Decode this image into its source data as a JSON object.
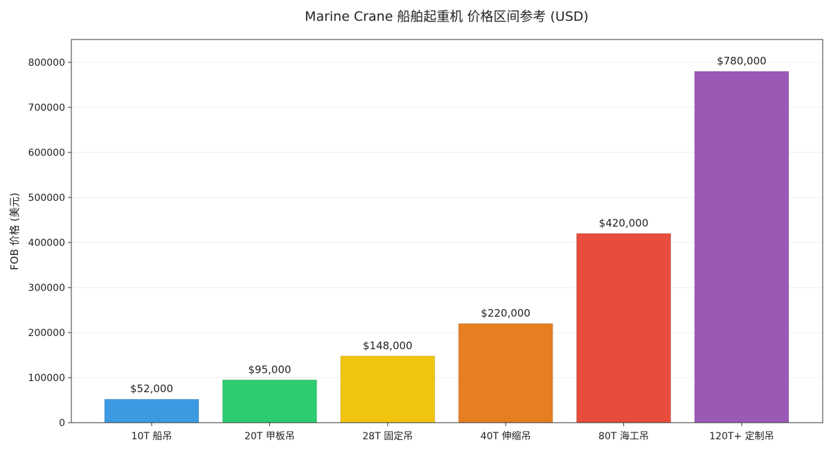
{
  "chart_data": {
    "type": "bar",
    "title": "Marine Crane 船舶起重机 价格区间参考 (USD)",
    "xlabel": "",
    "ylabel": "FOB 价格 (美元)",
    "categories": [
      "10T 船吊",
      "20T 甲板吊",
      "28T 固定吊",
      "40T 伸缩吊",
      "80T 海工吊",
      "120T+ 定制吊"
    ],
    "values": [
      52000,
      95000,
      148000,
      220000,
      420000,
      780000
    ],
    "value_labels": [
      "$52,000",
      "$95,000",
      "$148,000",
      "$220,000",
      "$420,000",
      "$780,000"
    ],
    "colors": [
      "#3b9ae1",
      "#2ecc71",
      "#f1c40f",
      "#e67e22",
      "#e74c3c",
      "#9b59b6"
    ],
    "ylim": [
      0,
      850000
    ],
    "yticks": [
      0,
      100000,
      200000,
      300000,
      400000,
      500000,
      600000,
      700000,
      800000
    ],
    "ytick_labels": [
      "0",
      "100000",
      "200000",
      "300000",
      "400000",
      "500000",
      "600000",
      "700000",
      "800000"
    ],
    "grid": true
  }
}
